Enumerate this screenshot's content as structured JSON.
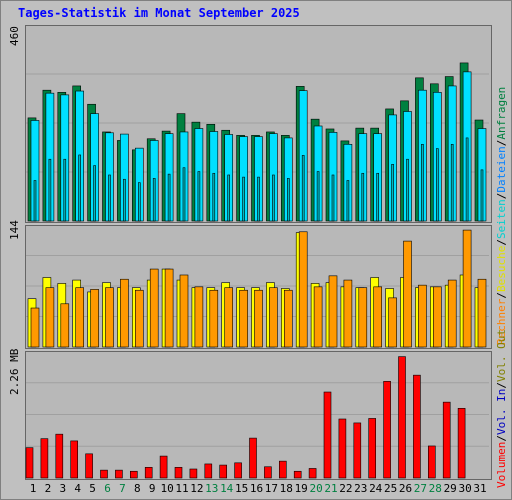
{
  "title": "Tages-Statistik im Monat September 2025",
  "chart_data": [
    {
      "type": "bar",
      "ymax_label": "460",
      "ylim": [
        0,
        460
      ],
      "series": [
        {
          "name": "Anfragen",
          "color": "#008040",
          "values": [
            242,
            307,
            302,
            317,
            274,
            209,
            189,
            167,
            193,
            211,
            252,
            232,
            227,
            213,
            201,
            201,
            209,
            201,
            316,
            239,
            216,
            188,
            218,
            218,
            263,
            282,
            336,
            322,
            339,
            371,
            237
          ]
        },
        {
          "name": "Dateien",
          "color": "#00e0ff",
          "values": [
            236,
            300,
            296,
            305,
            252,
            207,
            204,
            171,
            189,
            205,
            209,
            217,
            210,
            203,
            198,
            198,
            205,
            195,
            306,
            223,
            208,
            180,
            205,
            205,
            249,
            257,
            307,
            302,
            317,
            350,
            217
          ]
        },
        {
          "name": "Seiten",
          "color": "#00b8c0",
          "values": [
            95,
            145,
            145,
            155,
            130,
            108,
            98,
            90,
            100,
            110,
            125,
            116,
            112,
            108,
            103,
            103,
            108,
            100,
            154,
            116,
            108,
            95,
            112,
            112,
            133,
            145,
            180,
            170,
            180,
            195,
            120
          ]
        }
      ]
    },
    {
      "type": "bar",
      "ymax_label": "144",
      "ylim": [
        0,
        144
      ],
      "series": [
        {
          "name": "Besuche",
          "color": "#ffff00",
          "values": [
            57,
            82,
            75,
            79,
            65,
            76,
            70,
            70,
            79,
            92,
            79,
            70,
            70,
            76,
            70,
            70,
            76,
            69,
            135,
            75,
            76,
            71,
            70,
            82,
            69,
            82,
            70,
            71,
            73,
            85,
            70
          ]
        },
        {
          "name": "Rechner",
          "color": "#ff9900",
          "values": [
            46,
            70,
            51,
            70,
            68,
            70,
            80,
            67,
            92,
            92,
            85,
            71,
            67,
            70,
            67,
            67,
            70,
            67,
            136,
            71,
            84,
            79,
            70,
            71,
            58,
            125,
            73,
            71,
            79,
            138,
            80
          ]
        }
      ]
    },
    {
      "type": "bar",
      "ymax_label": "2.26 MB",
      "ylim": [
        0,
        2.26
      ],
      "series": [
        {
          "name": "Volumen",
          "color": "#ff0000",
          "values": [
            0.54,
            0.7,
            0.78,
            0.66,
            0.43,
            0.14,
            0.14,
            0.12,
            0.19,
            0.39,
            0.19,
            0.16,
            0.25,
            0.23,
            0.27,
            0.71,
            0.2,
            0.3,
            0.12,
            0.17,
            1.53,
            1.05,
            0.98,
            1.06,
            1.72,
            2.16,
            1.83,
            0.57,
            1.35,
            1.24,
            0.0
          ]
        }
      ]
    }
  ],
  "days": [
    "1",
    "2",
    "3",
    "4",
    "5",
    "6",
    "7",
    "8",
    "9",
    "10",
    "11",
    "12",
    "13",
    "14",
    "15",
    "16",
    "17",
    "18",
    "19",
    "20",
    "21",
    "22",
    "23",
    "24",
    "25",
    "26",
    "27",
    "28",
    "29",
    "30",
    "31"
  ],
  "weekend_days": [
    "6",
    "7",
    "13",
    "14",
    "20",
    "21",
    "27",
    "28"
  ],
  "legend": {
    "top": [
      {
        "text": "Anfragen",
        "color": "#008040"
      },
      {
        "text": "Dateien",
        "color": "#0080ff"
      },
      {
        "text": "Seiten",
        "color": "#00d0d0"
      },
      {
        "text": "Besuche",
        "color": "#e0e000"
      },
      {
        "text": "Rechner",
        "color": "#ff8000"
      }
    ],
    "bottom": [
      {
        "text": "Vol. Out",
        "color": "#808000"
      },
      {
        "text": "Vol. In",
        "color": "#0000c0"
      },
      {
        "text": "Volumen",
        "color": "#ff0000"
      }
    ],
    "separator": "/"
  }
}
